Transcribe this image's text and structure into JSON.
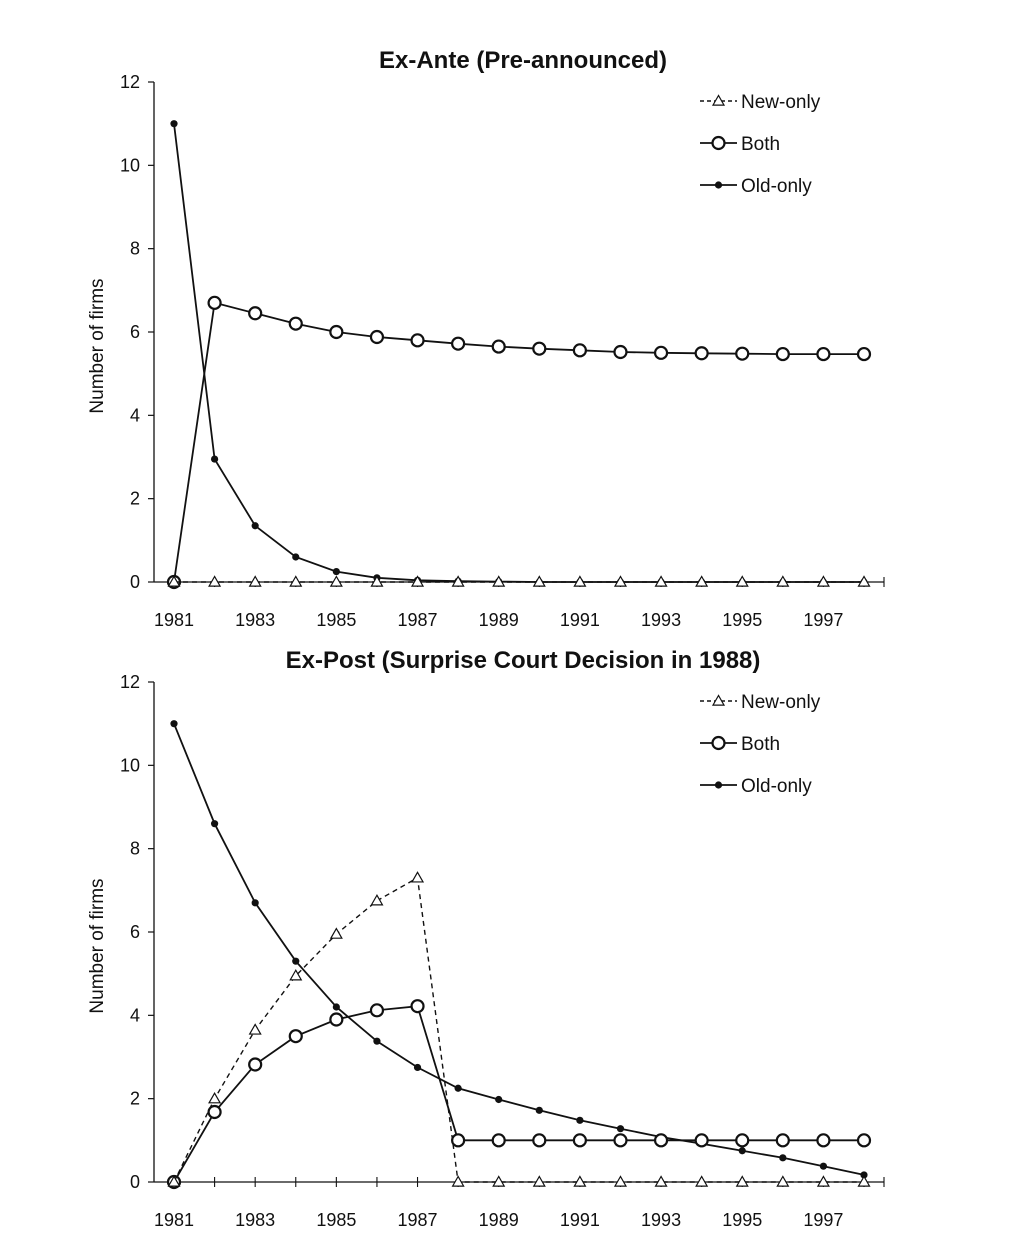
{
  "chart_data": [
    {
      "type": "line",
      "title": "Ex-Ante (Pre-announced)",
      "xlabel": "",
      "ylabel": "Number of firms",
      "xlim": [
        1981,
        1998
      ],
      "ylim": [
        0,
        12
      ],
      "xticks": [
        "1981",
        "1983",
        "1985",
        "1987",
        "1989",
        "1991",
        "1993",
        "1995",
        "1997"
      ],
      "yticks": [
        "0",
        "2",
        "4",
        "6",
        "8",
        "10",
        "12"
      ],
      "grid": false,
      "legend": "top-right",
      "x": [
        1981,
        1982,
        1983,
        1984,
        1985,
        1986,
        1987,
        1988,
        1989,
        1990,
        1991,
        1992,
        1993,
        1994,
        1995,
        1996,
        1997,
        1998
      ],
      "series": [
        {
          "name": "New-only",
          "style": "dashed-triangle",
          "color": "#111111",
          "values": [
            0,
            0,
            0,
            0,
            0,
            0,
            0,
            0,
            0,
            0,
            0,
            0,
            0,
            0,
            0,
            0,
            0,
            0
          ]
        },
        {
          "name": "Both",
          "style": "solid-open-circle",
          "color": "#111111",
          "values": [
            0,
            6.7,
            6.45,
            6.2,
            6.0,
            5.88,
            5.8,
            5.72,
            5.65,
            5.6,
            5.56,
            5.52,
            5.5,
            5.49,
            5.48,
            5.47,
            5.47,
            5.47
          ]
        },
        {
          "name": "Old-only",
          "style": "solid-dot",
          "color": "#111111",
          "values": [
            11.0,
            2.95,
            1.35,
            0.6,
            0.25,
            0.1,
            0.04,
            0.02,
            0.01,
            0,
            0,
            0,
            0,
            0,
            0,
            0,
            0,
            0
          ]
        }
      ]
    },
    {
      "type": "line",
      "title": "Ex-Post (Surprise Court Decision in 1988)",
      "xlabel": "",
      "ylabel": "Number of firms",
      "xlim": [
        1981,
        1998
      ],
      "ylim": [
        0,
        12
      ],
      "xticks": [
        "1981",
        "1983",
        "1985",
        "1987",
        "1989",
        "1991",
        "1993",
        "1995",
        "1997"
      ],
      "yticks": [
        "0",
        "2",
        "4",
        "6",
        "8",
        "10",
        "12"
      ],
      "grid": false,
      "legend": "top-right",
      "x": [
        1981,
        1982,
        1983,
        1984,
        1985,
        1986,
        1987,
        1988,
        1989,
        1990,
        1991,
        1992,
        1993,
        1994,
        1995,
        1996,
        1997,
        1998
      ],
      "series": [
        {
          "name": "New-only",
          "style": "dashed-triangle",
          "color": "#111111",
          "values": [
            0,
            2.0,
            3.65,
            4.95,
            5.95,
            6.75,
            7.3,
            0,
            0,
            0,
            0,
            0,
            0,
            0,
            0,
            0,
            0,
            0
          ]
        },
        {
          "name": "Both",
          "style": "solid-open-circle",
          "color": "#111111",
          "values": [
            0,
            1.68,
            2.82,
            3.5,
            3.9,
            4.12,
            4.22,
            1.0,
            1.0,
            1.0,
            1.0,
            1.0,
            1.0,
            1.0,
            1.0,
            1.0,
            1.0,
            1.0
          ]
        },
        {
          "name": "Old-only",
          "style": "solid-dot",
          "color": "#111111",
          "values": [
            11.0,
            8.6,
            6.7,
            5.3,
            4.2,
            3.38,
            2.75,
            2.25,
            1.98,
            1.72,
            1.48,
            1.28,
            1.08,
            0.92,
            0.75,
            0.58,
            0.38,
            0.17
          ]
        }
      ]
    }
  ]
}
